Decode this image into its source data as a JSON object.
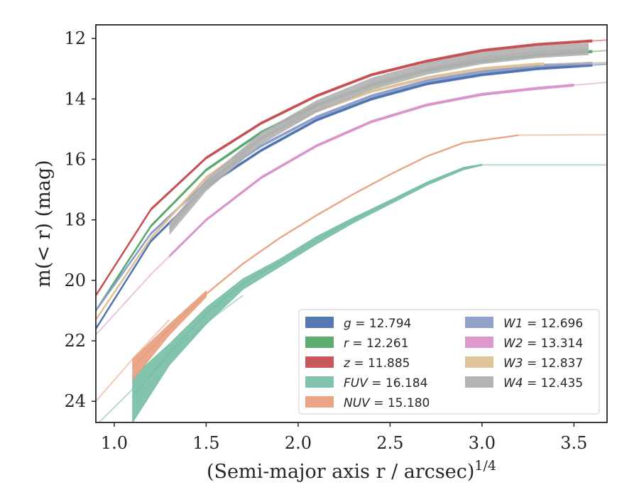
{
  "chart_data": {
    "type": "line",
    "xlabel": "(Semi-major axis r / arcsec)",
    "xlabel_exponent": "1/4",
    "ylabel": "m(< r) (mag)",
    "xlim": [
      0.9,
      3.68
    ],
    "ylim": [
      24.7,
      11.55
    ],
    "y_inverted": true,
    "grid": false,
    "legend_position": "lower-right",
    "x_ticks": [
      {
        "value": 1.0,
        "label": "1.0"
      },
      {
        "value": 1.5,
        "label": "1.5"
      },
      {
        "value": 2.0,
        "label": "2.0"
      },
      {
        "value": 2.5,
        "label": "2.5"
      },
      {
        "value": 3.0,
        "label": "3.0"
      },
      {
        "value": 3.5,
        "label": "3.5"
      }
    ],
    "y_ticks": [
      {
        "value": 12,
        "label": "12"
      },
      {
        "value": 14,
        "label": "14"
      },
      {
        "value": 16,
        "label": "16"
      },
      {
        "value": 18,
        "label": "18"
      },
      {
        "value": 20,
        "label": "20"
      },
      {
        "value": 22,
        "label": "22"
      },
      {
        "value": 24,
        "label": "24"
      }
    ],
    "series": [
      {
        "name": "g",
        "legend_label": "g = 12.794",
        "color": "#4c72b0",
        "x": [
          0.9,
          1.2,
          1.5,
          1.8,
          2.1,
          2.4,
          2.7,
          3.0,
          3.3,
          3.68
        ],
        "y": [
          21.6,
          18.7,
          16.9,
          15.7,
          14.7,
          14.0,
          13.5,
          13.2,
          13.0,
          12.85
        ],
        "band": 0.05,
        "faint_from": 3.6
      },
      {
        "name": "r",
        "legend_label": "r = 12.261",
        "color": "#55a868",
        "x": [
          0.9,
          1.2,
          1.5,
          1.8,
          2.1,
          2.4,
          2.7,
          3.0,
          3.3,
          3.68
        ],
        "y": [
          21.0,
          18.2,
          16.35,
          15.1,
          14.2,
          13.55,
          13.05,
          12.75,
          12.55,
          12.4
        ],
        "band": 0.05,
        "faint_from": 3.6
      },
      {
        "name": "z",
        "legend_label": "z = 11.885",
        "color": "#c44e52",
        "x": [
          0.9,
          1.2,
          1.5,
          1.8,
          2.1,
          2.4,
          2.7,
          3.0,
          3.3,
          3.68
        ],
        "y": [
          20.5,
          17.65,
          15.95,
          14.8,
          13.9,
          13.2,
          12.75,
          12.4,
          12.2,
          12.05
        ],
        "band": 0.05,
        "faint_from": 3.6
      },
      {
        "name": "FUV",
        "legend_label": "FUV = 16.184",
        "color": "#79bfa6",
        "x": [
          1.1,
          1.3,
          1.5,
          1.7,
          1.9,
          2.1,
          2.3,
          2.5,
          2.7,
          2.9,
          3.0,
          3.68
        ],
        "y": [
          23.85,
          22.4,
          21.1,
          20.1,
          19.4,
          18.65,
          18.0,
          17.4,
          16.8,
          16.3,
          16.18,
          16.18
        ],
        "band_x": [
          1.1,
          1.3,
          1.5,
          1.7,
          1.9,
          2.1,
          2.3,
          2.5,
          2.7,
          2.9,
          3.0
        ],
        "band_lo": [
          23.2,
          22.1,
          20.9,
          19.95,
          19.3,
          18.55,
          17.93,
          17.35,
          16.75,
          16.26,
          16.16
        ],
        "band_hi": [
          24.7,
          22.8,
          21.45,
          20.3,
          19.55,
          18.8,
          18.1,
          17.48,
          16.86,
          16.34,
          16.2
        ],
        "faint_from": 3.0,
        "faint_extension": {
          "x": [
            0.9,
            1.2,
            1.5,
            1.7
          ],
          "y": [
            24.8,
            23.0,
            21.4,
            20.5
          ]
        }
      },
      {
        "name": "NUV",
        "legend_label": "NUV = 15.180",
        "color": "#e8a07f",
        "x": [
          1.1,
          1.3,
          1.5,
          1.7,
          1.9,
          2.1,
          2.3,
          2.5,
          2.7,
          2.9,
          3.2,
          3.68
        ],
        "y": [
          22.9,
          21.6,
          20.45,
          19.45,
          18.6,
          17.85,
          17.15,
          16.5,
          15.9,
          15.45,
          15.2,
          15.18
        ],
        "band_x": [
          1.1,
          1.3,
          1.5
        ],
        "band_lo": [
          22.6,
          21.45,
          20.35
        ],
        "band_hi": [
          23.3,
          21.8,
          20.55
        ],
        "faint_from": 3.2,
        "faint_extension": {
          "x": [
            0.9,
            1.1,
            1.3
          ],
          "y": [
            24.0,
            22.6,
            21.3
          ]
        }
      },
      {
        "name": "W1",
        "legend_label": "W1 = 12.696",
        "color": "#8d9dc7",
        "x": [
          0.9,
          1.2,
          1.5,
          1.8,
          2.1,
          2.4,
          2.7,
          3.0,
          3.3,
          3.68
        ],
        "y": [
          21.0,
          18.45,
          16.75,
          15.55,
          14.6,
          13.9,
          13.4,
          13.1,
          12.9,
          12.8
        ],
        "band": 0.05,
        "faint_from": 3.6
      },
      {
        "name": "W2",
        "legend_label": "W2 = 13.314",
        "color": "#d993c9",
        "x": [
          0.9,
          1.2,
          1.5,
          1.8,
          2.1,
          2.4,
          2.7,
          3.0,
          3.3,
          3.68
        ],
        "y": [
          21.8,
          19.8,
          18.0,
          16.6,
          15.55,
          14.75,
          14.2,
          13.85,
          13.65,
          13.45
        ],
        "band": 0.05,
        "faint_from": 3.5,
        "faint_to": 1.3
      },
      {
        "name": "W3",
        "legend_label": "W3 = 12.837",
        "color": "#dcc096",
        "x": [
          0.9,
          1.2,
          1.5,
          1.8,
          2.1,
          2.4,
          2.7,
          3.0,
          3.3,
          3.68
        ],
        "y": [
          21.3,
          18.6,
          16.6,
          15.3,
          14.4,
          13.75,
          13.3,
          13.0,
          12.85,
          12.8
        ],
        "band": 0.05,
        "faint_from": 3.35
      },
      {
        "name": "W4",
        "legend_label": "W4 = 12.435",
        "color": "#b0b0b0",
        "x": [
          1.3,
          1.5,
          1.8,
          2.1,
          2.4,
          2.7,
          3.0,
          3.3,
          3.58
        ],
        "y": [
          18.3,
          16.85,
          15.3,
          14.25,
          13.5,
          13.0,
          12.65,
          12.45,
          12.35
        ],
        "band": 0.2,
        "faint_from": 3.58
      }
    ]
  }
}
